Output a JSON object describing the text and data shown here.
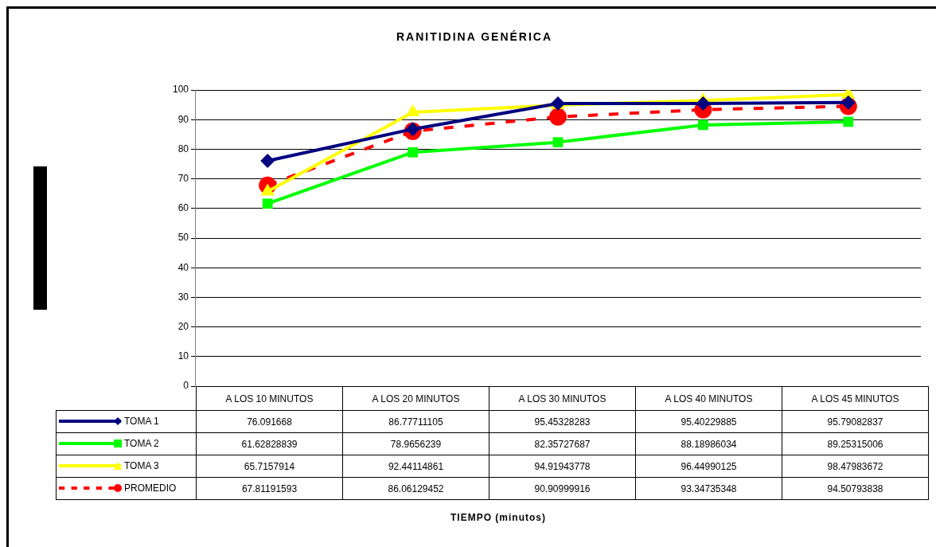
{
  "chart_data": {
    "type": "line",
    "title": "RANITIDINA GENÉRICA",
    "annotations": [
      "TIEMPO (minutos)"
    ],
    "categories": [
      "A LOS 10 MINUTOS",
      "A LOS 20 MINUTOS",
      "A LOS 30 MINUTOS",
      "A LOS 40 MINUTOS",
      "A LOS 45 MINUTOS"
    ],
    "series": [
      {
        "name": "TOMA 1",
        "color": "#000080",
        "marker": "diamond",
        "line_style": "solid",
        "values": [
          76.091668,
          86.77711105,
          95.45328283,
          95.40229885,
          95.79082837
        ]
      },
      {
        "name": "TOMA 2",
        "color": "#00ff00",
        "marker": "square",
        "line_style": "solid",
        "values": [
          61.62828839,
          78.9656239,
          82.35727687,
          88.18986034,
          89.25315006
        ]
      },
      {
        "name": "TOMA 3",
        "color": "#ffff00",
        "marker": "triangle",
        "line_style": "solid",
        "values": [
          65.7157914,
          92.44114861,
          94.91943778,
          96.44990125,
          98.47983672
        ]
      },
      {
        "name": "PROMEDIO",
        "color": "#ff0000",
        "marker": "circle",
        "line_style": "dashed",
        "values": [
          67.81191593,
          86.06129452,
          90.90999916,
          93.34735348,
          94.50793838
        ]
      }
    ],
    "ylim": [
      0,
      100
    ],
    "yticks": [
      0,
      10,
      20,
      30,
      40,
      50,
      60,
      70,
      80,
      90,
      100
    ],
    "grid": "y",
    "legend": "bottom left",
    "data_labels": true
  }
}
